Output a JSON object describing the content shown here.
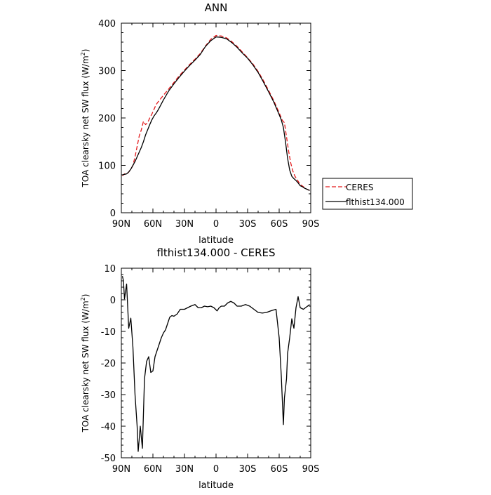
{
  "chart_data": [
    {
      "type": "line",
      "title": "ANN",
      "xlabel": "latitude",
      "ylabel": "TOA clearsky net SW flux (W/m",
      "ylabel_sup": "2",
      "ylabel_tail": ")",
      "xlim": [
        90,
        -90
      ],
      "ylim": [
        0,
        400
      ],
      "xticks": [
        90,
        60,
        30,
        0,
        -30,
        -60,
        -90
      ],
      "xtick_labels": [
        "90N",
        "60N",
        "30N",
        "0",
        "30S",
        "60S",
        "90S"
      ],
      "yticks": [
        0,
        100,
        200,
        300,
        400
      ],
      "ytick_labels": [
        "0",
        "100",
        "200",
        "300",
        "400"
      ],
      "legend_position": "right, outside the axes",
      "series": [
        {
          "name": "CERES",
          "color": "#e31a1c",
          "dash": "dashed",
          "points": [
            [
              89,
              78
            ],
            [
              87,
              82
            ],
            [
              85,
              81
            ],
            [
              83,
              86
            ],
            [
              81,
              92
            ],
            [
              79,
              100
            ],
            [
              77,
              118
            ],
            [
              75,
              140
            ],
            [
              73,
              162
            ],
            [
              71,
              175
            ],
            [
              69,
              193
            ],
            [
              67,
              186
            ],
            [
              65,
              190
            ],
            [
              63,
              200
            ],
            [
              61,
              208
            ],
            [
              59,
              218
            ],
            [
              57,
              228
            ],
            [
              55,
              234
            ],
            [
              50,
              248
            ],
            [
              45,
              261
            ],
            [
              40,
              275
            ],
            [
              35,
              289
            ],
            [
              30,
              301
            ],
            [
              25,
              313
            ],
            [
              20,
              324
            ],
            [
              15,
              336
            ],
            [
              10,
              352
            ],
            [
              5,
              366
            ],
            [
              0,
              374
            ],
            [
              -5,
              373
            ],
            [
              -10,
              369
            ],
            [
              -15,
              361
            ],
            [
              -20,
              351
            ],
            [
              -25,
              339
            ],
            [
              -30,
              327
            ],
            [
              -35,
              314
            ],
            [
              -40,
              298
            ],
            [
              -45,
              279
            ],
            [
              -50,
              258
            ],
            [
              -55,
              236
            ],
            [
              -60,
              211
            ],
            [
              -63,
              195
            ],
            [
              -65,
              190
            ],
            [
              -67,
              160
            ],
            [
              -69,
              130
            ],
            [
              -71,
              105
            ],
            [
              -73,
              88
            ],
            [
              -75,
              77
            ],
            [
              -77,
              70
            ],
            [
              -79,
              63
            ],
            [
              -81,
              58
            ],
            [
              -83,
              55
            ],
            [
              -85,
              51
            ],
            [
              -87,
              49
            ],
            [
              -89,
              47
            ]
          ]
        },
        {
          "name": "flthist134.000",
          "color": "#000000",
          "dash": "solid",
          "points": [
            [
              89,
              80
            ],
            [
              87,
              81
            ],
            [
              85,
              82
            ],
            [
              83,
              86
            ],
            [
              81,
              92
            ],
            [
              79,
              100
            ],
            [
              77,
              108
            ],
            [
              75,
              118
            ],
            [
              73,
              128
            ],
            [
              71,
              138
            ],
            [
              69,
              150
            ],
            [
              67,
              164
            ],
            [
              65,
              175
            ],
            [
              63,
              186
            ],
            [
              61,
              196
            ],
            [
              59,
              204
            ],
            [
              57,
              210
            ],
            [
              55,
              217
            ],
            [
              50,
              238
            ],
            [
              45,
              257
            ],
            [
              40,
              272
            ],
            [
              35,
              286
            ],
            [
              30,
              299
            ],
            [
              25,
              311
            ],
            [
              20,
              322
            ],
            [
              15,
              334
            ],
            [
              10,
              351
            ],
            [
              5,
              363
            ],
            [
              0,
              371
            ],
            [
              -5,
              370
            ],
            [
              -10,
              367
            ],
            [
              -15,
              359
            ],
            [
              -20,
              349
            ],
            [
              -25,
              337
            ],
            [
              -30,
              326
            ],
            [
              -35,
              312
            ],
            [
              -40,
              296
            ],
            [
              -45,
              276
            ],
            [
              -50,
              255
            ],
            [
              -55,
              233
            ],
            [
              -60,
              207
            ],
            [
              -62,
              196
            ],
            [
              -64,
              180
            ],
            [
              -66,
              150
            ],
            [
              -68,
              115
            ],
            [
              -70,
              90
            ],
            [
              -72,
              77
            ],
            [
              -74,
              72
            ],
            [
              -76,
              68
            ],
            [
              -78,
              63
            ],
            [
              -80,
              57
            ],
            [
              -82,
              55
            ],
            [
              -84,
              52
            ],
            [
              -86,
              50
            ],
            [
              -88,
              48
            ],
            [
              -89,
              47
            ]
          ]
        }
      ]
    },
    {
      "type": "line",
      "title": "flthist134.000 - CERES",
      "xlabel": "latitude",
      "ylabel": "TOA clearsky net SW flux (W/m",
      "ylabel_sup": "2",
      "ylabel_tail": ")",
      "xlim": [
        90,
        -90
      ],
      "ylim": [
        -50,
        10
      ],
      "xticks": [
        90,
        60,
        30,
        0,
        -30,
        -60,
        -90
      ],
      "xtick_labels": [
        "90N",
        "60N",
        "30N",
        "0",
        "30S",
        "60S",
        "90S"
      ],
      "yticks": [
        -50,
        -40,
        -30,
        -20,
        -10,
        0,
        10
      ],
      "ytick_labels": [
        "-50",
        "-40",
        "-30",
        "-20",
        "-10",
        "0",
        "10"
      ],
      "series": [
        {
          "color": "#000000",
          "dash": "solid",
          "points": [
            [
              89,
              7.5
            ],
            [
              88,
              6
            ],
            [
              87,
              0.3
            ],
            [
              85,
              5
            ],
            [
              83,
              -9
            ],
            [
              81,
              -5.8
            ],
            [
              79,
              -15
            ],
            [
              77,
              -30
            ],
            [
              75,
              -40
            ],
            [
              74,
              -48
            ],
            [
              72,
              -40
            ],
            [
              70,
              -47
            ],
            [
              68,
              -25
            ],
            [
              66,
              -19.5
            ],
            [
              64,
              -18
            ],
            [
              62,
              -23
            ],
            [
              60,
              -22.5
            ],
            [
              58,
              -18
            ],
            [
              55,
              -15
            ],
            [
              52,
              -12
            ],
            [
              50,
              -10.5
            ],
            [
              48,
              -9.5
            ],
            [
              46,
              -7.5
            ],
            [
              44,
              -5.5
            ],
            [
              42,
              -5
            ],
            [
              40,
              -5.2
            ],
            [
              37,
              -4.5
            ],
            [
              34,
              -3
            ],
            [
              30,
              -3
            ],
            [
              27,
              -2.5
            ],
            [
              24,
              -2
            ],
            [
              20,
              -1.5
            ],
            [
              17,
              -2.5
            ],
            [
              14,
              -2.5
            ],
            [
              11,
              -2
            ],
            [
              8,
              -2.2
            ],
            [
              5,
              -2
            ],
            [
              2,
              -2.5
            ],
            [
              -1,
              -3.5
            ],
            [
              -3,
              -2.5
            ],
            [
              -5,
              -2
            ],
            [
              -8,
              -2
            ],
            [
              -11,
              -1
            ],
            [
              -14,
              -0.5
            ],
            [
              -17,
              -1
            ],
            [
              -20,
              -2
            ],
            [
              -24,
              -2
            ],
            [
              -28,
              -1.5
            ],
            [
              -32,
              -2
            ],
            [
              -36,
              -3
            ],
            [
              -40,
              -4
            ],
            [
              -44,
              -4.2
            ],
            [
              -48,
              -4
            ],
            [
              -52,
              -3.5
            ],
            [
              -55,
              -3.2
            ],
            [
              -57,
              -3
            ],
            [
              -60,
              -12
            ],
            [
              -62,
              -24
            ],
            [
              -64,
              -39.5
            ],
            [
              -65,
              -31
            ],
            [
              -67,
              -25
            ],
            [
              -68,
              -17
            ],
            [
              -70,
              -12
            ],
            [
              -72,
              -6
            ],
            [
              -74,
              -9
            ],
            [
              -76,
              -2.5
            ],
            [
              -78,
              1
            ],
            [
              -80,
              -2.5
            ],
            [
              -83,
              -3
            ],
            [
              -85,
              -2.5
            ],
            [
              -87,
              -2
            ],
            [
              -89,
              -1.5
            ]
          ]
        }
      ]
    }
  ]
}
